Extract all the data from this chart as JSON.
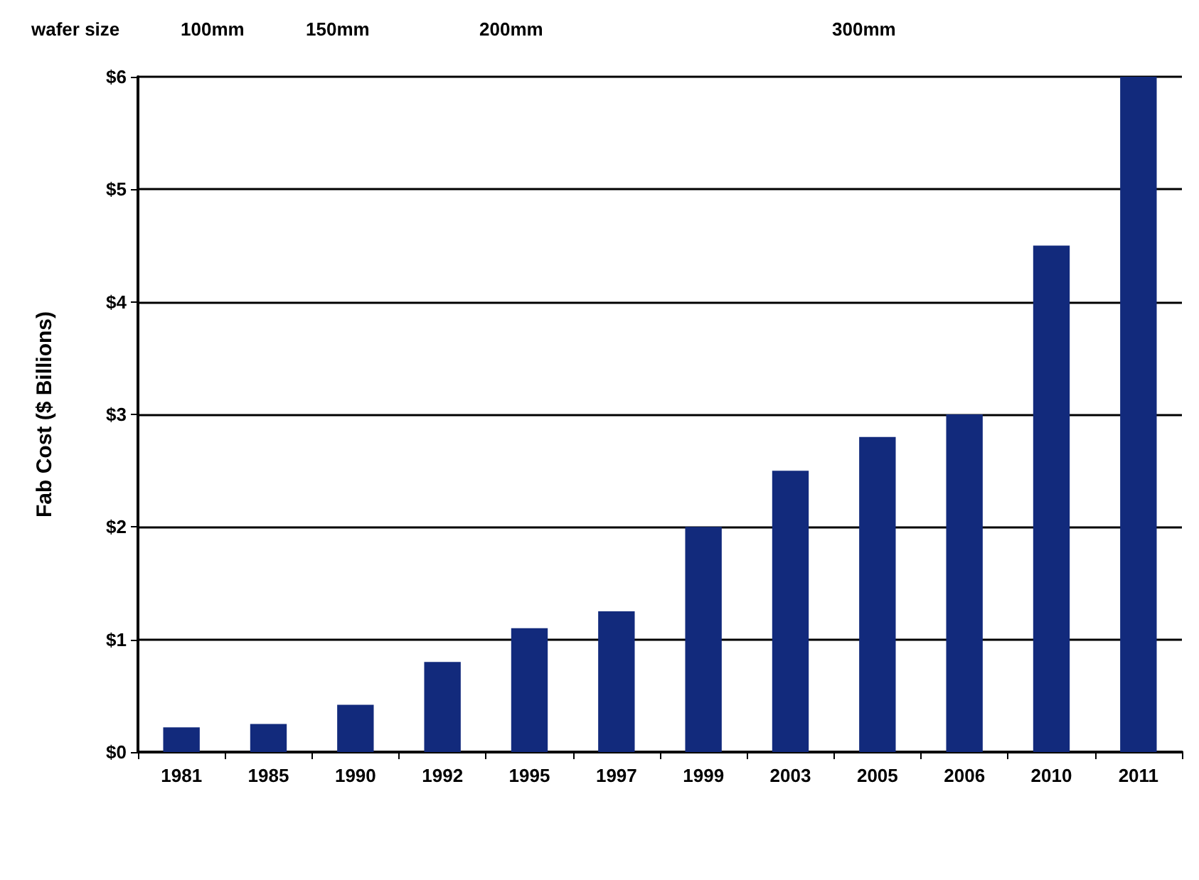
{
  "chart_data": {
    "type": "bar",
    "ylabel": "Fab Cost ($ Billions)",
    "categories": [
      "1981",
      "1985",
      "1990",
      "1992",
      "1995",
      "1997",
      "1999",
      "2003",
      "2005",
      "2006",
      "2010",
      "2011"
    ],
    "values": [
      0.22,
      0.25,
      0.42,
      0.8,
      1.1,
      1.25,
      2.0,
      2.5,
      2.8,
      3.0,
      4.5,
      6.0
    ],
    "color": "#122a7c",
    "ylim": [
      0,
      6
    ],
    "yticks": [
      {
        "value": 0,
        "label": "$0"
      },
      {
        "value": 1,
        "label": "$1"
      },
      {
        "value": 2,
        "label": "$2"
      },
      {
        "value": 3,
        "label": "$3"
      },
      {
        "value": 4,
        "label": "$4"
      },
      {
        "value": 5,
        "label": "$5"
      },
      {
        "value": 6,
        "label": "$6"
      }
    ],
    "grid": "y",
    "annotations": [
      "wafer size",
      "100mm",
      "150mm",
      "200mm",
      "300mm"
    ]
  }
}
